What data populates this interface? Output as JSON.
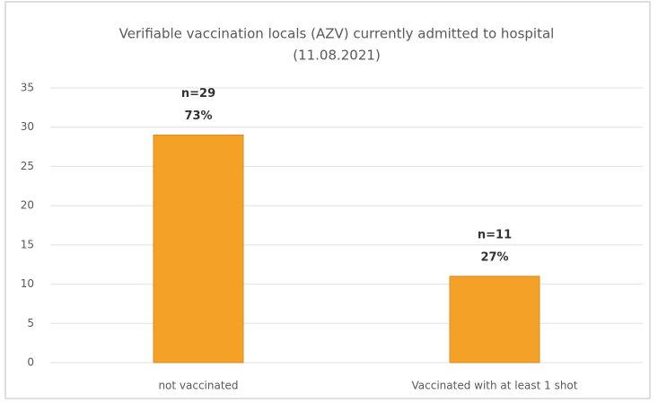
{
  "chart_data": {
    "type": "bar",
    "title": "Verifiable vaccination locals (AZV) currently admitted to hospital",
    "subtitle": "(11.08.2021)",
    "categories": [
      "not vaccinated",
      "Vaccinated with at least 1 shot"
    ],
    "values": [
      29,
      11
    ],
    "value_labels": [
      "n=29",
      "n=11"
    ],
    "percent_labels": [
      "73%",
      "27%"
    ],
    "color": "#f4a128",
    "ylim": [
      0,
      35
    ],
    "yticks": [
      0,
      5,
      10,
      15,
      20,
      25,
      30,
      35
    ],
    "grid": true
  }
}
